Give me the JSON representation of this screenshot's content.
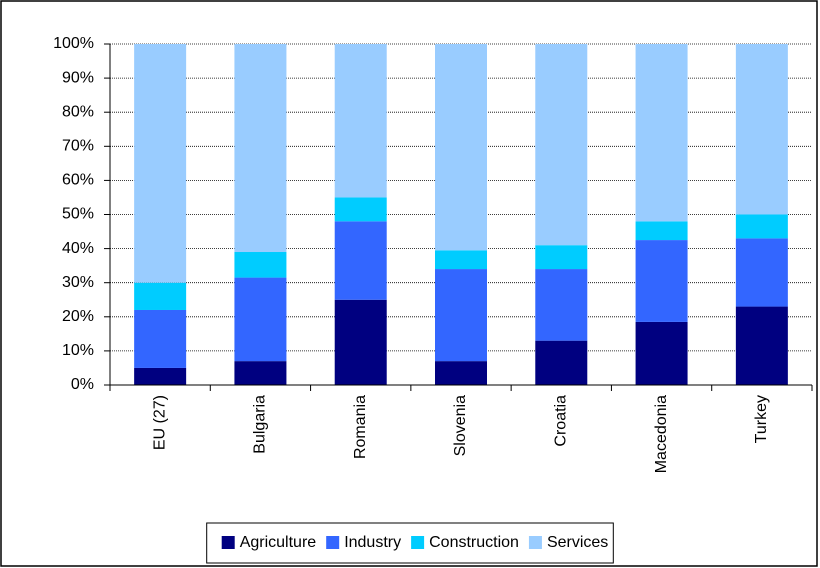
{
  "chart_data": {
    "type": "stacked_bar",
    "categories": [
      "EU (27)",
      "Bulgaria",
      "Romania",
      "Slovenia",
      "Croatia",
      "Macedonia",
      "Turkey"
    ],
    "series": [
      {
        "name": "Agriculture",
        "color": "#000080",
        "values": [
          5,
          7,
          25,
          7,
          13,
          18.5,
          23
        ]
      },
      {
        "name": "Industry",
        "color": "#3366ff",
        "values": [
          17,
          24.5,
          23,
          27,
          21,
          24,
          20
        ]
      },
      {
        "name": "Construction",
        "color": "#00ccff",
        "values": [
          8,
          7.5,
          7,
          5.5,
          7,
          5.5,
          7
        ]
      },
      {
        "name": "Services",
        "color": "#99ccff",
        "values": [
          70,
          61,
          45,
          60.5,
          59,
          52,
          50
        ]
      }
    ],
    "ylim": [
      0,
      100
    ],
    "yticks": [
      {
        "value": 0,
        "label": "0%"
      },
      {
        "value": 10,
        "label": "10%"
      },
      {
        "value": 20,
        "label": "20%"
      },
      {
        "value": 30,
        "label": "30%"
      },
      {
        "value": 40,
        "label": "40%"
      },
      {
        "value": 50,
        "label": "50%"
      },
      {
        "value": 60,
        "label": "60%"
      },
      {
        "value": 70,
        "label": "70%"
      },
      {
        "value": 80,
        "label": "80%"
      },
      {
        "value": 90,
        "label": "90%"
      },
      {
        "value": 100,
        "label": "100%"
      }
    ],
    "grid": true,
    "legend": "bottom"
  }
}
